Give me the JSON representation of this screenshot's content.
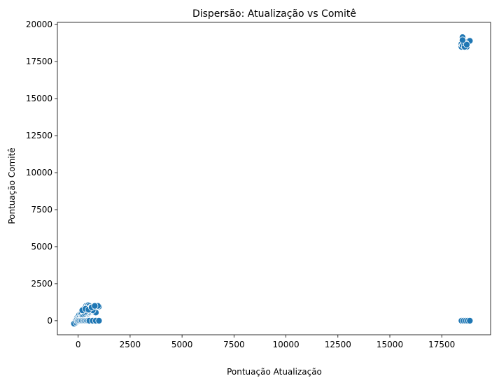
{
  "chart_data": {
    "type": "scatter",
    "title": "Dispersão: Atualização vs Comitê",
    "xlabel": "Pontuação Atualização",
    "ylabel": "Pontuação Comitê",
    "xlim": [
      -1000,
      19850
    ],
    "ylim": [
      -950,
      20150
    ],
    "xticks": [
      0,
      2500,
      5000,
      7500,
      10000,
      12500,
      15000,
      17500
    ],
    "yticks": [
      0,
      2500,
      5000,
      7500,
      10000,
      12500,
      15000,
      17500,
      20000
    ],
    "grid": false,
    "marker_color": "#1f77b4",
    "series": [
      {
        "x": [
          -150,
          -80,
          -20,
          30,
          60,
          100,
          150,
          200,
          250,
          300,
          350,
          400,
          450,
          500,
          550,
          600,
          650,
          700,
          750,
          800,
          900,
          1000,
          -100,
          -50,
          0,
          50,
          120,
          180,
          220,
          280,
          330,
          380,
          420,
          470,
          520,
          580,
          620,
          680,
          720,
          780,
          850,
          950,
          -120,
          -60,
          10,
          80,
          140,
          160,
          240,
          300,
          360,
          410,
          460,
          490,
          540,
          600,
          640,
          700,
          -200,
          -100,
          -30,
          40,
          90,
          130,
          170,
          210,
          260,
          310,
          350,
          400,
          450,
          500,
          0,
          60,
          120,
          180,
          240,
          300,
          360,
          420,
          480,
          540,
          200,
          350,
          500,
          650,
          800
        ],
        "y": [
          -150,
          -100,
          -50,
          0,
          50,
          100,
          150,
          200,
          250,
          300,
          350,
          400,
          450,
          500,
          550,
          600,
          650,
          700,
          750,
          800,
          850,
          950,
          100,
          200,
          300,
          400,
          500,
          600,
          700,
          800,
          900,
          1000,
          950,
          900,
          850,
          800,
          750,
          700,
          650,
          600,
          550,
          1000,
          0,
          50,
          150,
          250,
          350,
          450,
          550,
          650,
          750,
          850,
          950,
          1050,
          1000,
          900,
          800,
          700,
          -200,
          -120,
          -60,
          20,
          80,
          160,
          240,
          320,
          400,
          480,
          560,
          640,
          720,
          800,
          0,
          0,
          0,
          0,
          0,
          0,
          0,
          0,
          0,
          0,
          700,
          800,
          750,
          900,
          1000
        ]
      },
      {
        "x": [
          18450,
          18500,
          18550,
          18600,
          18650,
          18700,
          18850,
          18450,
          18500,
          18600,
          18650,
          18550,
          18700,
          18500
        ],
        "y": [
          18500,
          19150,
          18900,
          18650,
          18800,
          18500,
          18900,
          18700,
          18600,
          18500,
          18750,
          18800,
          18650,
          18950
        ]
      },
      {
        "x": [
          18450,
          18550,
          18650,
          18750,
          18850
        ],
        "y": [
          0,
          0,
          0,
          0,
          0
        ]
      },
      {
        "x": [
          700,
          850,
          1000
        ],
        "y": [
          0,
          0,
          0
        ]
      }
    ]
  }
}
